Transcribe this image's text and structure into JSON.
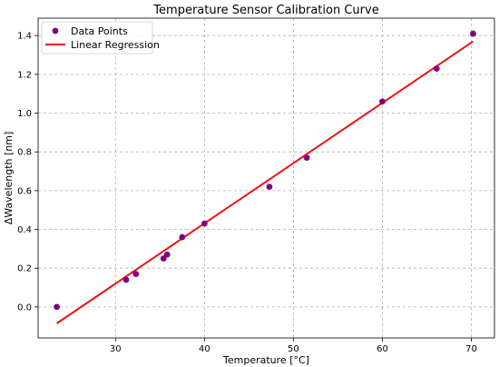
{
  "chart_data": {
    "type": "scatter",
    "title": "Temperature Sensor Calibration Curve",
    "xlabel": "Temperature [°C]",
    "ylabel": "ΔWavelength [nm]",
    "xlim": [
      21.3,
      72.6
    ],
    "ylim": [
      -0.16,
      1.49
    ],
    "x_ticks": [
      30,
      40,
      50,
      60,
      70
    ],
    "y_ticks": [
      0.0,
      0.2,
      0.4,
      0.6,
      0.8,
      1.0,
      1.2,
      1.4
    ],
    "grid": true,
    "legend_position": "top-left",
    "series": [
      {
        "name": "Data Points",
        "kind": "scatter",
        "color": "#800080",
        "points": [
          {
            "x": 23.4,
            "y": 0.0
          },
          {
            "x": 31.2,
            "y": 0.14
          },
          {
            "x": 32.3,
            "y": 0.17
          },
          {
            "x": 35.4,
            "y": 0.25
          },
          {
            "x": 35.8,
            "y": 0.27
          },
          {
            "x": 37.5,
            "y": 0.36
          },
          {
            "x": 40.0,
            "y": 0.43
          },
          {
            "x": 47.3,
            "y": 0.62
          },
          {
            "x": 51.5,
            "y": 0.77
          },
          {
            "x": 60.0,
            "y": 1.06
          },
          {
            "x": 66.1,
            "y": 1.23
          },
          {
            "x": 70.2,
            "y": 1.41
          }
        ]
      },
      {
        "name": "Linear Regression",
        "kind": "line",
        "color": "#ee1111",
        "points": [
          {
            "x": 23.4,
            "y": -0.085
          },
          {
            "x": 70.2,
            "y": 1.37
          }
        ]
      }
    ]
  }
}
